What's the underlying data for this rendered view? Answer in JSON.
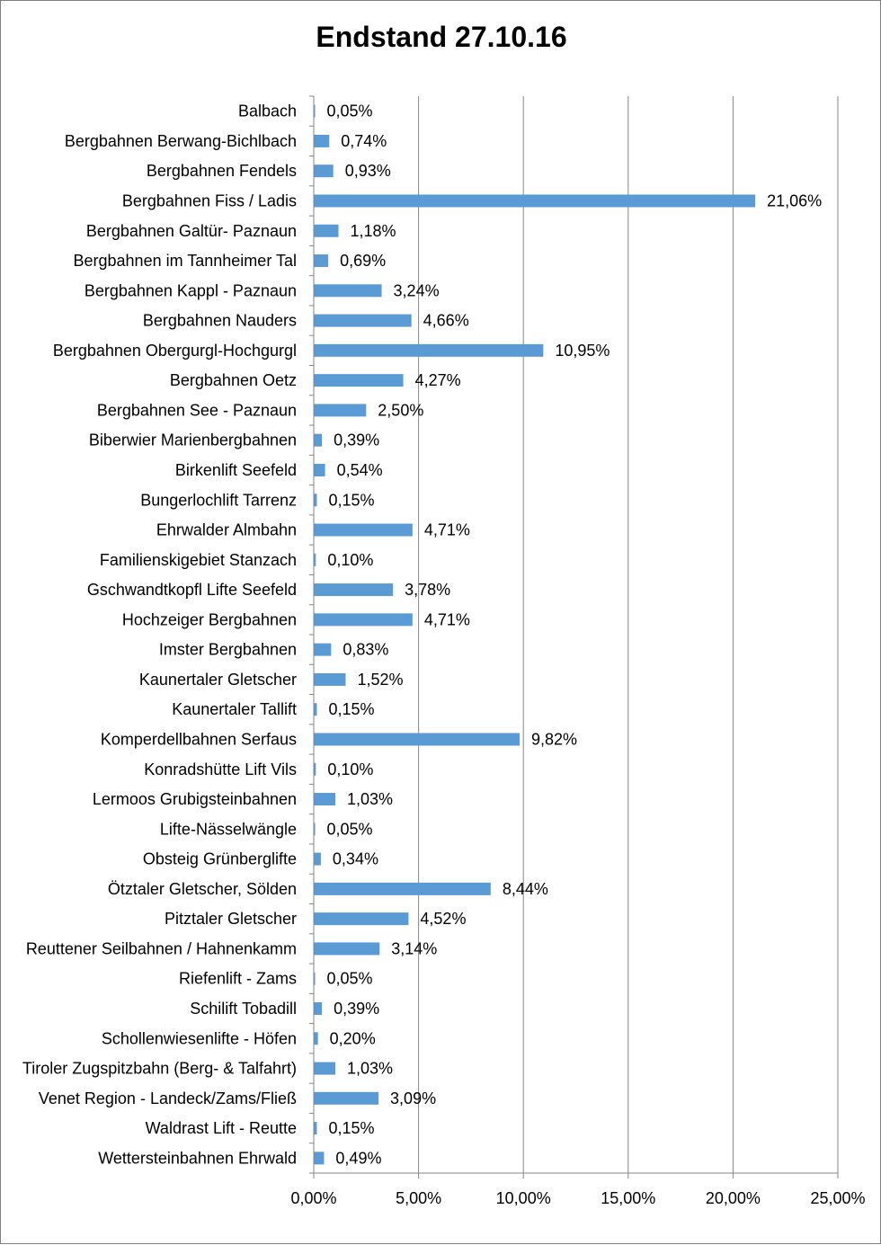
{
  "chart_data": {
    "type": "bar",
    "orientation": "horizontal",
    "title": "Endstand 27.10.16",
    "xlabel": "",
    "ylabel": "",
    "xlim": [
      0,
      25
    ],
    "x_ticks": [
      "0,00%",
      "5,00%",
      "10,00%",
      "15,00%",
      "20,00%",
      "25,00%"
    ],
    "x_tick_values": [
      0,
      5,
      10,
      15,
      20,
      25
    ],
    "grid": "vertical",
    "legend": "none",
    "bar_color": "#5b9bd5",
    "categories": [
      "Balbach",
      "Bergbahnen Berwang-Bichlbach",
      "Bergbahnen Fendels",
      "Bergbahnen Fiss / Ladis",
      "Bergbahnen Galtür- Paznaun",
      "Bergbahnen im Tannheimer Tal",
      "Bergbahnen Kappl - Paznaun",
      "Bergbahnen Nauders",
      "Bergbahnen Obergurgl-Hochgurgl",
      "Bergbahnen Oetz",
      "Bergbahnen See - Paznaun",
      "Biberwier Marienbergbahnen",
      "Birkenlift Seefeld",
      "Bungerlochlift Tarrenz",
      "Ehrwalder Almbahn",
      "Familienskigebiet Stanzach",
      "Gschwandtkopfl Lifte Seefeld",
      "Hochzeiger Bergbahnen",
      "Imster Bergbahnen",
      "Kaunertaler Gletscher",
      "Kaunertaler Tallift",
      "Komperdellbahnen Serfaus",
      "Konradshütte Lift Vils",
      "Lermoos Grubigsteinbahnen",
      "Lifte-Nässelwängle",
      "Obsteig Grünberglifte",
      "Ötztaler Gletscher, Sölden",
      "Pitztaler Gletscher",
      "Reuttener Seilbahnen / Hahnenkamm",
      "Riefenlift - Zams",
      "Schilift Tobadill",
      "Schollenwiesenlifte - Höfen",
      "Tiroler Zugspitzbahn (Berg- & Talfahrt)",
      "Venet Region - Landeck/Zams/Fließ",
      "Waldrast Lift - Reutte",
      "Wettersteinbahnen Ehrwald"
    ],
    "values": [
      0.05,
      0.74,
      0.93,
      21.06,
      1.18,
      0.69,
      3.24,
      4.66,
      10.95,
      4.27,
      2.5,
      0.39,
      0.54,
      0.15,
      4.71,
      0.1,
      3.78,
      4.71,
      0.83,
      1.52,
      0.15,
      9.82,
      0.1,
      1.03,
      0.05,
      0.34,
      8.44,
      4.52,
      3.14,
      0.05,
      0.39,
      0.2,
      1.03,
      3.09,
      0.15,
      0.49
    ],
    "data_labels": [
      "0,05%",
      "0,74%",
      "0,93%",
      "21,06%",
      "1,18%",
      "0,69%",
      "3,24%",
      "4,66%",
      "10,95%",
      "4,27%",
      "2,50%",
      "0,39%",
      "0,54%",
      "0,15%",
      "4,71%",
      "0,10%",
      "3,78%",
      "4,71%",
      "0,83%",
      "1,52%",
      "0,15%",
      "9,82%",
      "0,10%",
      "1,03%",
      "0,05%",
      "0,34%",
      "8,44%",
      "4,52%",
      "3,14%",
      "0,05%",
      "0,39%",
      "0,20%",
      "1,03%",
      "3,09%",
      "0,15%",
      "0,49%"
    ]
  }
}
